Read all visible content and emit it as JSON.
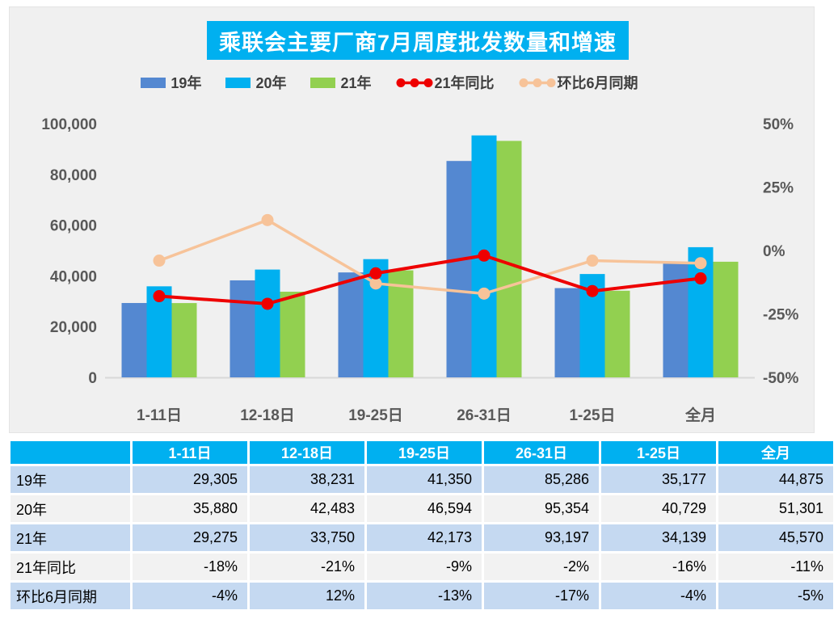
{
  "title": "乘联会主要厂商7月周度批发数量和增速",
  "colors": {
    "title_bg": "#00b0f0",
    "panel_bg": "#f0f0f0",
    "bar_19": "#5488d1",
    "bar_20": "#00b0f0",
    "bar_21": "#92d050",
    "line_yoy": "#ee0000",
    "line_mom": "#f7c399",
    "axis_text": "#595959",
    "baseline": "#d8d8d8",
    "table_header_bg": "#00b0f0",
    "row_blue": "#c5d9f1",
    "row_gray": "#f2f2f2"
  },
  "chart_data": {
    "type": "bar+line combo",
    "title": "乘联会主要厂商7月周度批发数量和增速",
    "categories": [
      "1-11日",
      "12-18日",
      "19-25日",
      "26-31日",
      "1-25日",
      "全月"
    ],
    "bar_series": [
      {
        "name": "19年",
        "color": "#5488d1",
        "values": [
          29305,
          38231,
          41350,
          85286,
          35177,
          44875
        ]
      },
      {
        "name": "20年",
        "color": "#00b0f0",
        "values": [
          35880,
          42483,
          46594,
          95354,
          40729,
          51301
        ]
      },
      {
        "name": "21年",
        "color": "#92d050",
        "values": [
          29275,
          33750,
          42173,
          93197,
          34139,
          45570
        ]
      }
    ],
    "line_series": [
      {
        "name": "21年同比",
        "color": "#ee0000",
        "values_pct": [
          -18,
          -21,
          -9,
          -2,
          -16,
          -11
        ]
      },
      {
        "name": "环比6月同期",
        "color": "#f7c399",
        "values_pct": [
          -4,
          12,
          -13,
          -17,
          -4,
          -5
        ]
      }
    ],
    "left_axis": {
      "min": 0,
      "max": 100000,
      "tick_values": [
        0,
        20000,
        40000,
        60000,
        80000,
        100000
      ],
      "tick_labels": [
        "0",
        "20,000",
        "40,000",
        "60,000",
        "80,000",
        "100,000"
      ]
    },
    "right_axis": {
      "min": -50,
      "max": 50,
      "tick_values": [
        -50,
        -25,
        0,
        25,
        50
      ],
      "tick_labels": [
        "-50%",
        "-25%",
        "0%",
        "25%",
        "50%"
      ]
    },
    "legend_position": "top",
    "grid": false
  },
  "table": {
    "header": [
      "",
      "1-11日",
      "12-18日",
      "19-25日",
      "26-31日",
      "1-25日",
      "全月"
    ],
    "rows": [
      {
        "label": "19年",
        "shade": "blue",
        "values": [
          "29,305",
          "38,231",
          "41,350",
          "85,286",
          "35,177",
          "44,875"
        ]
      },
      {
        "label": "20年",
        "shade": "gray",
        "values": [
          "35,880",
          "42,483",
          "46,594",
          "95,354",
          "40,729",
          "51,301"
        ]
      },
      {
        "label": "21年",
        "shade": "blue",
        "values": [
          "29,275",
          "33,750",
          "42,173",
          "93,197",
          "34,139",
          "45,570"
        ]
      },
      {
        "label": "21年同比",
        "shade": "gray",
        "values": [
          "-18%",
          "-21%",
          "-9%",
          "-2%",
          "-16%",
          "-11%"
        ]
      },
      {
        "label": "环比6月同期",
        "shade": "blue",
        "values": [
          "-4%",
          "12%",
          "-13%",
          "-17%",
          "-4%",
          "-5%"
        ]
      }
    ]
  }
}
